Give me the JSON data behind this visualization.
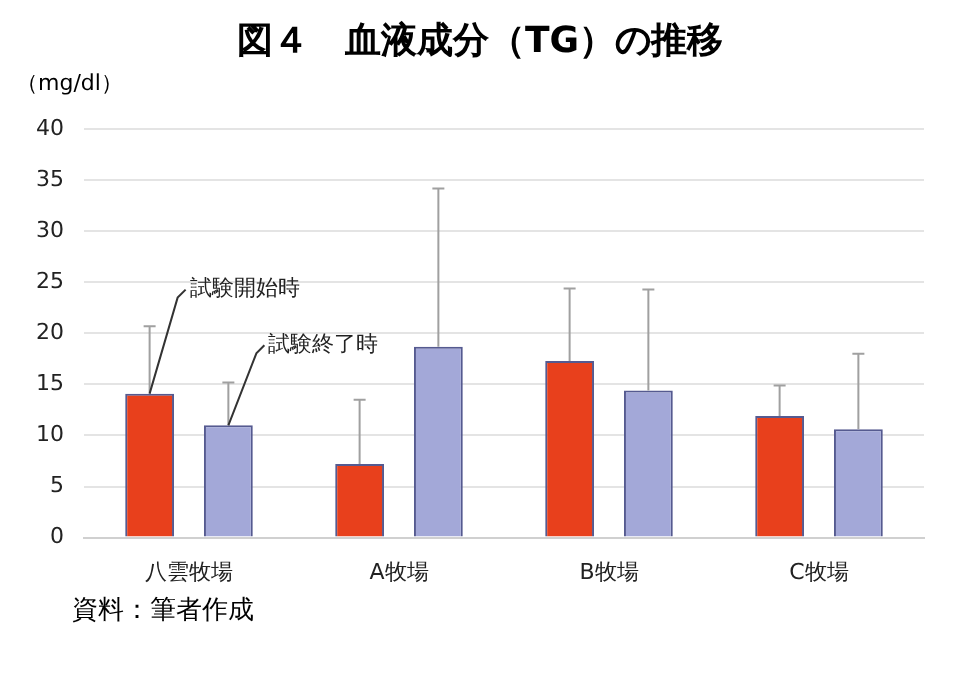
{
  "chart_data": {
    "type": "bar",
    "title": "図４　血液成分（TG）の推移",
    "ylabel": "（mg/dl）",
    "annotations": [
      "資料：筆者作成"
    ],
    "categories": [
      "八雲牧場",
      "A牧場",
      "B牧場",
      "C牧場"
    ],
    "series": [
      {
        "name": "試験開始時",
        "color": "#e8401c",
        "values": [
          14.1,
          7.2,
          17.3,
          11.9
        ],
        "errors": [
          [
            14.1,
            20.7
          ],
          [
            7.2,
            13.5
          ],
          [
            17.3,
            24.4
          ],
          [
            11.9,
            14.9
          ]
        ]
      },
      {
        "name": "試験終了時",
        "color": "#a3a8d8",
        "values": [
          11.0,
          18.7,
          14.4,
          10.6
        ],
        "errors": [
          [
            11.0,
            15.2
          ],
          [
            18.7,
            34.2
          ],
          [
            14.4,
            24.3
          ],
          [
            10.6,
            18.0
          ]
        ]
      }
    ],
    "ylim": [
      0,
      40
    ],
    "yticks": [
      0,
      5,
      10,
      15,
      20,
      25,
      30,
      35,
      40
    ],
    "grid": "y",
    "legend": false
  }
}
